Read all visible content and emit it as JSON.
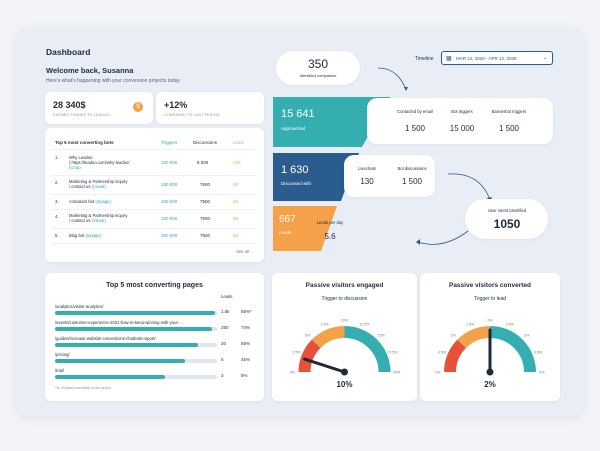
{
  "header": {
    "title": "Dashboard",
    "welcome": "Welcome back, Susanna",
    "subtitle": "Here's what's happening with your conversion projects today"
  },
  "timeline": {
    "label": "Timeline",
    "range": "MAR 12, 2028 - APR 12, 2028"
  },
  "kpis": {
    "earned_value": "28 340$",
    "earned_label": "EARNED THANKS TO LEADOO",
    "compare_value": "+12%",
    "compare_label": "COMPARED TO LAST PERIOD"
  },
  "bots_table": {
    "title": "Top 5 most converting bots",
    "columns": [
      "Triggers",
      "Discussions",
      "Lead"
    ],
    "rows": [
      {
        "num": "1.",
        "name": "Why Leadoo",
        "url": "( https://leadoo.com/why-leadoo/",
        "tag": "(Chat)",
        "triggers": "150 000",
        "discussions": "5 000",
        "lead": "100"
      },
      {
        "num": "2.",
        "name": "Marketing & Partnership inquiry",
        "url": "/ contact us",
        "tag": "(Visual)",
        "triggers": "150 000",
        "discussions": "7500",
        "lead": "50"
      },
      {
        "num": "3.",
        "name": "Activation bot",
        "url": "",
        "tag": "(Inpage)",
        "triggers": "150 000",
        "discussions": "7500",
        "lead": "50"
      },
      {
        "num": "4.",
        "name": "Marketing & Partnership inquiry",
        "url": "/ contact us",
        "tag": "(Visual)",
        "triggers": "150 000",
        "discussions": "7500",
        "lead": "50"
      },
      {
        "num": "5.",
        "name": "Blog bot",
        "url": "",
        "tag": "(Inpage)",
        "triggers": "150 000",
        "discussions": "7500",
        "lead": "50"
      }
    ],
    "see_all": "See all"
  },
  "funnel": {
    "identified_value": "350",
    "identified_label": "Identified companies",
    "approached_value": "15 641",
    "approached_label": "Approached",
    "discussed_value": "1 630",
    "discussed_label": "Discussed with",
    "leads_value": "667",
    "leads_label": "Leads",
    "contacted_label": "Contacted by email",
    "contacted_value": "1 500",
    "bot_triggers_label": "Bot triggers",
    "bot_triggers_value": "15 000",
    "bannerbot_label": "Bannerbot triggers",
    "bannerbot_value": "1 500",
    "livechats_label": "Livechats",
    "livechats_value": "130",
    "bot_discussions_label": "Bot discussions",
    "bot_discussions_value": "1 500",
    "leads_per_day_label": "Leads per day",
    "leads_per_day_value": "5.6",
    "user_intent_label": "User intent identified",
    "user_intent_value": "1050"
  },
  "pages": {
    "title": "Top 5 most converting pages",
    "leads_col": "Leads",
    "rows": [
      {
        "label": "/analytics/visitor-analytics/",
        "fill": 0.99,
        "leads": "1.5k",
        "pct": "85%*"
      },
      {
        "label": "/events/customer-experience-2021-how-to-keep-winning-with-your-...",
        "fill": 0.97,
        "leads": "250",
        "pct": "74%"
      },
      {
        "label": "/guides/increase-website-conversions-chatbots-report/",
        "fill": 0.88,
        "leads": "20",
        "pct": "65%"
      },
      {
        "label": "/pricing/",
        "fill": 0.8,
        "leads": "5",
        "pct": "45%"
      },
      {
        "label": "/trial/",
        "fill": 0.68,
        "leads": "3",
        "pct": "5%"
      }
    ],
    "footnote": "*% of leads converted in the period"
  },
  "gauges": [
    {
      "title": "Passive visitors engaged",
      "subtitle": "Trigger to discussion",
      "value": "10%",
      "level": 0.1,
      "ticks": [
        "0%",
        "2.5%",
        "5%",
        "7.5%",
        "10%",
        "12.5%",
        "15%",
        "17.5%",
        "20%"
      ]
    },
    {
      "title": "Passive visitors converted",
      "subtitle": "Trigger to lead",
      "value": "2%",
      "level": 0.5,
      "ticks": [
        "0%",
        "0.5%",
        "1%",
        "1.5%",
        "2%",
        "2.5%",
        "3%",
        "3.5%",
        "4%"
      ]
    }
  ],
  "colors": {
    "teal": "#35aeb2",
    "navy": "#2a5d8e",
    "orange": "#f5a14a",
    "red": "#e8503a"
  }
}
